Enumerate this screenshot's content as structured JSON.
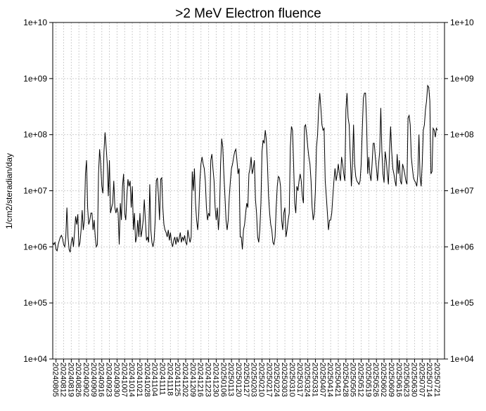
{
  "chart_data": {
    "type": "line",
    "title": ">2 MeV Electron fluence",
    "ylabel": "1/cm2/steradian/day",
    "log_y": true,
    "grid": true,
    "color": "#000000",
    "ylim": [
      10000,
      10000000000
    ],
    "yticks": [
      {
        "value": 10000,
        "label": "1e+04"
      },
      {
        "value": 100000,
        "label": "1e+05"
      },
      {
        "value": 1000000,
        "label": "1e+06"
      },
      {
        "value": 10000000,
        "label": "1e+07"
      },
      {
        "value": 100000000,
        "label": "1e+08"
      },
      {
        "value": 1000000000,
        "label": "1e+09"
      },
      {
        "value": 10000000000,
        "label": "1e+10"
      }
    ],
    "categories": [
      null,
      null,
      null,
      "20240805",
      null,
      null,
      null,
      null,
      null,
      null,
      "20240812",
      null,
      null,
      null,
      null,
      null,
      null,
      "20240819",
      null,
      null,
      null,
      null,
      null,
      null,
      "20240826",
      null,
      null,
      null,
      null,
      null,
      null,
      "20240902",
      null,
      null,
      null,
      null,
      null,
      null,
      "20240909",
      null,
      null,
      null,
      null,
      null,
      null,
      "20240916",
      null,
      null,
      null,
      null,
      null,
      null,
      "20240923",
      null,
      null,
      null,
      null,
      null,
      null,
      "20240930",
      null,
      null,
      null,
      null,
      null,
      null,
      "20241007",
      null,
      null,
      null,
      null,
      null,
      null,
      "20241014",
      null,
      null,
      null,
      null,
      null,
      null,
      "20241021",
      null,
      null,
      null,
      null,
      null,
      null,
      "20241028",
      null,
      null,
      null,
      null,
      null,
      null,
      "20241104",
      null,
      null,
      null,
      null,
      null,
      null,
      "20241111",
      null,
      null,
      null,
      null,
      null,
      null,
      "20241118",
      null,
      null,
      null,
      null,
      null,
      null,
      "20241125",
      null,
      null,
      null,
      null,
      null,
      null,
      "20241202",
      null,
      null,
      null,
      null,
      null,
      null,
      "20241209",
      null,
      null,
      null,
      null,
      null,
      null,
      "20241216",
      null,
      null,
      null,
      null,
      null,
      null,
      "20241223",
      null,
      null,
      null,
      null,
      null,
      null,
      "20241230",
      null,
      null,
      null,
      null,
      null,
      null,
      "20250106",
      null,
      null,
      null,
      null,
      null,
      null,
      "20250113",
      null,
      null,
      null,
      null,
      null,
      null,
      "20250120",
      null,
      null,
      null,
      null,
      null,
      null,
      "20250127",
      null,
      null,
      null,
      null,
      null,
      null,
      "20250203",
      null,
      null,
      null,
      null,
      null,
      null,
      "20250210",
      null,
      null,
      null,
      null,
      null,
      null,
      "20250217",
      null,
      null,
      null,
      null,
      null,
      null,
      "20250224",
      null,
      null,
      null,
      null,
      null,
      null,
      "20250303",
      null,
      null,
      null,
      null,
      null,
      null,
      "20250310",
      null,
      null,
      null,
      null,
      null,
      null,
      "20250317",
      null,
      null,
      null,
      null,
      null,
      null,
      "20250324",
      null,
      null,
      null,
      null,
      null,
      null,
      "20250331",
      null,
      null,
      null,
      null,
      null,
      null,
      "20250407",
      null,
      null,
      null,
      null,
      null,
      null,
      "20250414",
      null,
      null,
      null,
      null,
      null,
      null,
      "20250421",
      null,
      null,
      null,
      null,
      null,
      null,
      "20250428",
      null,
      null,
      null,
      null,
      null,
      null,
      "20250505",
      null,
      null,
      null,
      null,
      null,
      null,
      "20250512",
      null,
      null,
      null,
      null,
      null,
      null,
      "20250519",
      null,
      null,
      null,
      null,
      null,
      null,
      "20250526",
      null,
      null,
      null,
      null,
      null,
      null,
      "20250602",
      null,
      null,
      null,
      null,
      null,
      null,
      "20250609",
      null,
      null,
      null,
      null,
      null,
      null,
      "20250616",
      null,
      null,
      null,
      null,
      null,
      null,
      "20250623",
      null,
      null,
      null,
      null,
      null,
      null,
      "20250630",
      null,
      null,
      null,
      null,
      null,
      null,
      "20250707",
      null,
      null,
      null,
      null,
      null,
      null,
      "20250714",
      null,
      null,
      null,
      null,
      null,
      null,
      "20250721"
    ],
    "values": [
      1200000.0,
      1100000.0,
      1200000.0,
      900000.0,
      850000.0,
      1100000.0,
      1300000.0,
      1500000.0,
      1600000.0,
      1400000.0,
      1100000.0,
      1000000.0,
      1500000.0,
      5000000.0,
      1500000.0,
      900000.0,
      800000.0,
      1200000.0,
      1500000.0,
      1000000.0,
      1800000.0,
      3500000.0,
      2500000.0,
      3800000.0,
      1000000.0,
      1200000.0,
      2000000.0,
      4500000.0,
      2000000.0,
      3000000.0,
      20000000.0,
      35000000.0,
      5000000.0,
      2500000.0,
      3000000.0,
      4000000.0,
      4000000.0,
      2000000.0,
      3000000.0,
      1500000.0,
      1000000.0,
      1100000.0,
      20000000.0,
      55000000.0,
      30000000.0,
      12000000.0,
      9000000.0,
      50000000.0,
      110000000.0,
      60000000.0,
      30000000.0,
      8000000.0,
      35000000.0,
      4000000.0,
      5000000.0,
      6000000.0,
      15000000.0,
      5000000.0,
      4000000.0,
      5000000.0,
      4000000.0,
      1100000.0,
      6000000.0,
      3000000.0,
      12000000.0,
      20000000.0,
      4000000.0,
      3000000.0,
      8000000.0,
      16000000.0,
      12000000.0,
      15000000.0,
      5000000.0,
      12000000.0,
      2000000.0,
      4000000.0,
      1200000.0,
      1500000.0,
      3000000.0,
      1500000.0,
      4000000.0,
      1500000.0,
      2000000.0,
      3000000.0,
      7000000.0,
      3000000.0,
      1300000.0,
      1500000.0,
      1200000.0,
      13000000.0,
      2000000.0,
      1200000.0,
      1000000.0,
      1300000.0,
      3000000.0,
      15000000.0,
      17000000.0,
      8000000.0,
      3000000.0,
      16000000.0,
      17000000.0,
      5000000.0,
      2500000.0,
      2000000.0,
      1800000.0,
      1500000.0,
      2000000.0,
      1300000.0,
      1800000.0,
      1200000.0,
      1000000.0,
      1300000.0,
      1500000.0,
      1100000.0,
      1500000.0,
      1200000.0,
      1400000.0,
      1800000.0,
      1200000.0,
      1500000.0,
      1300000.0,
      1600000.0,
      1200000.0,
      1100000.0,
      2000000.0,
      1500000.0,
      1200000.0,
      1500000.0,
      22000000.0,
      10000000.0,
      25000000.0,
      6000000.0,
      3000000.0,
      2000000.0,
      4000000.0,
      15000000.0,
      30000000.0,
      40000000.0,
      30000000.0,
      25000000.0,
      15000000.0,
      5000000.0,
      3000000.0,
      4000000.0,
      3500000.0,
      35000000.0,
      45000000.0,
      25000000.0,
      15000000.0,
      5000000.0,
      3000000.0,
      5000000.0,
      2000000.0,
      4000000.0,
      30000000.0,
      85000000.0,
      60000000.0,
      20000000.0,
      8000000.0,
      3000000.0,
      2000000.0,
      3000000.0,
      8000000.0,
      15000000.0,
      25000000.0,
      30000000.0,
      40000000.0,
      50000000.0,
      55000000.0,
      35000000.0,
      20000000.0,
      25000000.0,
      1500000.0,
      1500000.0,
      900000.0,
      2000000.0,
      2500000.0,
      4000000.0,
      6000000.0,
      5000000.0,
      20000000.0,
      25000000.0,
      40000000.0,
      20000000.0,
      25000000.0,
      35000000.0,
      7000000.0,
      4000000.0,
      1500000.0,
      1200000.0,
      2000000.0,
      6000000.0,
      50000000.0,
      80000000.0,
      70000000.0,
      120000000.0,
      80000000.0,
      30000000.0,
      8000000.0,
      4000000.0,
      2500000.0,
      2000000.0,
      1200000.0,
      1100000.0,
      1500000.0,
      5000000.0,
      12000000.0,
      18000000.0,
      17000000.0,
      12000000.0,
      3000000.0,
      2000000.0,
      4000000.0,
      5000000.0,
      1500000.0,
      2000000.0,
      3000000.0,
      4000000.0,
      60000000.0,
      140000000.0,
      120000000.0,
      30000000.0,
      6000000.0,
      4000000.0,
      12000000.0,
      10000000.0,
      15000000.0,
      20000000.0,
      15000000.0,
      8000000.0,
      6000000.0,
      140000000.0,
      150000000.0,
      100000000.0,
      60000000.0,
      40000000.0,
      30000000.0,
      15000000.0,
      5000000.0,
      3000000.0,
      4000000.0,
      10000000.0,
      60000000.0,
      100000000.0,
      300000000.0,
      550000000.0,
      300000000.0,
      150000000.0,
      120000000.0,
      130000000.0,
      15000000.0,
      8000000.0,
      4000000.0,
      2000000.0,
      3000000.0,
      3000000.0,
      4000000.0,
      8000000.0,
      15000000.0,
      25000000.0,
      15000000.0,
      20000000.0,
      30000000.0,
      20000000.0,
      15000000.0,
      40000000.0,
      30000000.0,
      20000000.0,
      15000000.0,
      280000000.0,
      550000000.0,
      200000000.0,
      150000000.0,
      40000000.0,
      12000000.0,
      30000000.0,
      150000000.0,
      30000000.0,
      18000000.0,
      15000000.0,
      14000000.0,
      13000000.0,
      15000000.0,
      30000000.0,
      120000000.0,
      450000000.0,
      550000000.0,
      550000000.0,
      150000000.0,
      20000000.0,
      40000000.0,
      20000000.0,
      15000000.0,
      30000000.0,
      70000000.0,
      70000000.0,
      40000000.0,
      25000000.0,
      15000000.0,
      30000000.0,
      50000000.0,
      300000000.0,
      50000000.0,
      20000000.0,
      14000000.0,
      50000000.0,
      35000000.0,
      20000000.0,
      13000000.0,
      50000000.0,
      140000000.0,
      50000000.0,
      25000000.0,
      20000000.0,
      15000000.0,
      12000000.0,
      45000000.0,
      20000000.0,
      35000000.0,
      15000000.0,
      13000000.0,
      30000000.0,
      25000000.0,
      20000000.0,
      15000000.0,
      13000000.0,
      200000000.0,
      220000000.0,
      150000000.0,
      40000000.0,
      25000000.0,
      17000000.0,
      15000000.0,
      14000000.0,
      12000000.0,
      20000000.0,
      100000000.0,
      18000000.0,
      12000000.0,
      30000000.0,
      120000000.0,
      150000000.0,
      280000000.0,
      400000000.0,
      750000000.0,
      700000000.0,
      400000000.0,
      20000000.0,
      22000000.0,
      130000000.0,
      120000000.0,
      90000000.0,
      130000000.0,
      120000000.0
    ]
  }
}
